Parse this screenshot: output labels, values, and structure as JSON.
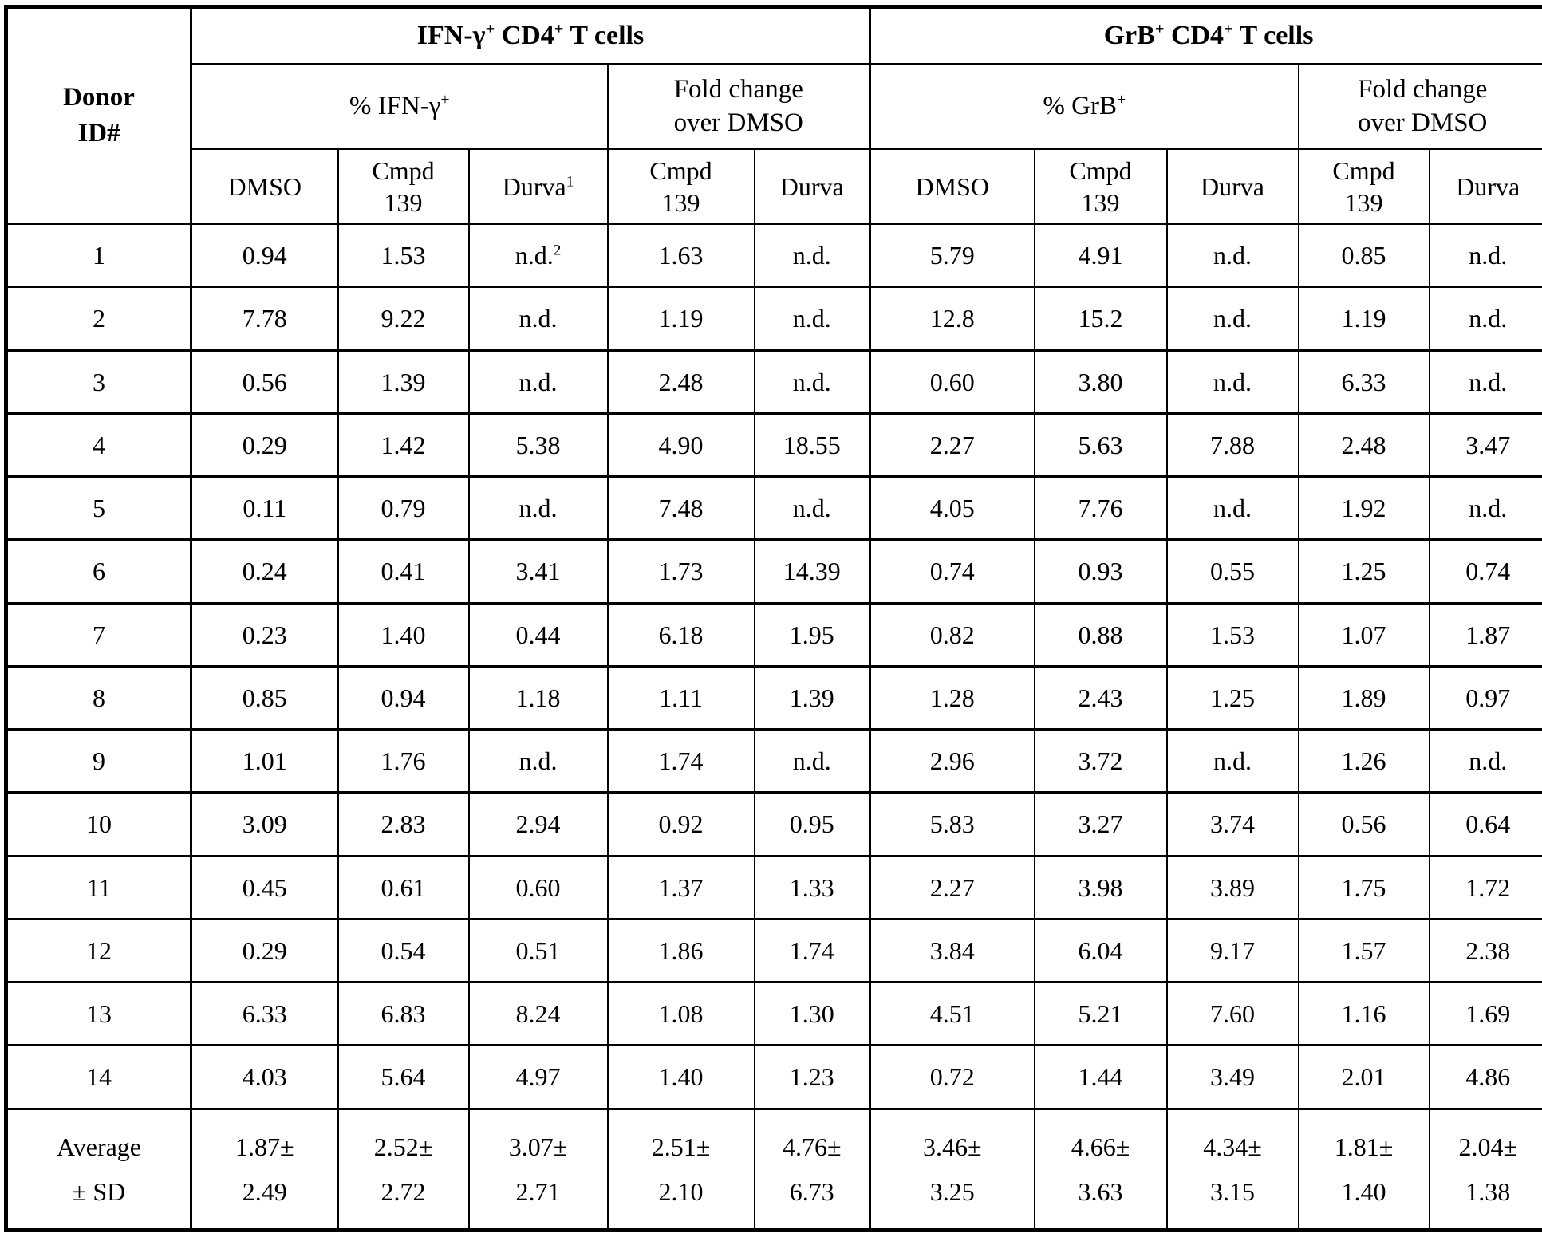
{
  "table": {
    "donor_header": "Donor\nID#",
    "col_groups": [
      {
        "label": "IFN-γ^+ CD4^+ T cells",
        "sub": [
          {
            "label": "% IFN-γ^+",
            "span": 3
          },
          {
            "label": "Fold change\nover DMSO",
            "span": 2
          }
        ]
      },
      {
        "label": "GrB^+ CD4^+ T cells",
        "sub": [
          {
            "label": "% GrB^+",
            "span": 3
          },
          {
            "label": "Fold change\nover DMSO",
            "span": 2
          }
        ]
      }
    ],
    "column_headers": [
      "DMSO",
      "Cmpd\n139",
      "Durva^1",
      "Cmpd\n139",
      "Durva",
      "DMSO",
      "Cmpd\n139",
      "Durva",
      "Cmpd\n139",
      "Durva"
    ],
    "rows": [
      {
        "donor": "1",
        "values": [
          "0.94",
          "1.53",
          "n.d.^2",
          "1.63",
          "n.d.",
          "5.79",
          "4.91",
          "n.d.",
          "0.85",
          "n.d."
        ]
      },
      {
        "donor": "2",
        "values": [
          "7.78",
          "9.22",
          "n.d.",
          "1.19",
          "n.d.",
          "12.8",
          "15.2",
          "n.d.",
          "1.19",
          "n.d."
        ]
      },
      {
        "donor": "3",
        "values": [
          "0.56",
          "1.39",
          "n.d.",
          "2.48",
          "n.d.",
          "0.60",
          "3.80",
          "n.d.",
          "6.33",
          "n.d."
        ]
      },
      {
        "donor": "4",
        "values": [
          "0.29",
          "1.42",
          "5.38",
          "4.90",
          "18.55",
          "2.27",
          "5.63",
          "7.88",
          "2.48",
          "3.47"
        ]
      },
      {
        "donor": "5",
        "values": [
          "0.11",
          "0.79",
          "n.d.",
          "7.48",
          "n.d.",
          "4.05",
          "7.76",
          "n.d.",
          "1.92",
          "n.d."
        ]
      },
      {
        "donor": "6",
        "values": [
          "0.24",
          "0.41",
          "3.41",
          "1.73",
          "14.39",
          "0.74",
          "0.93",
          "0.55",
          "1.25",
          "0.74"
        ]
      },
      {
        "donor": "7",
        "values": [
          "0.23",
          "1.40",
          "0.44",
          "6.18",
          "1.95",
          "0.82",
          "0.88",
          "1.53",
          "1.07",
          "1.87"
        ]
      },
      {
        "donor": "8",
        "values": [
          "0.85",
          "0.94",
          "1.18",
          "1.11",
          "1.39",
          "1.28",
          "2.43",
          "1.25",
          "1.89",
          "0.97"
        ]
      },
      {
        "donor": "9",
        "values": [
          "1.01",
          "1.76",
          "n.d.",
          "1.74",
          "n.d.",
          "2.96",
          "3.72",
          "n.d.",
          "1.26",
          "n.d."
        ]
      },
      {
        "donor": "10",
        "values": [
          "3.09",
          "2.83",
          "2.94",
          "0.92",
          "0.95",
          "5.83",
          "3.27",
          "3.74",
          "0.56",
          "0.64"
        ]
      },
      {
        "donor": "11",
        "values": [
          "0.45",
          "0.61",
          "0.60",
          "1.37",
          "1.33",
          "2.27",
          "3.98",
          "3.89",
          "1.75",
          "1.72"
        ]
      },
      {
        "donor": "12",
        "values": [
          "0.29",
          "0.54",
          "0.51",
          "1.86",
          "1.74",
          "3.84",
          "6.04",
          "9.17",
          "1.57",
          "2.38"
        ]
      },
      {
        "donor": "13",
        "values": [
          "6.33",
          "6.83",
          "8.24",
          "1.08",
          "1.30",
          "4.51",
          "5.21",
          "7.60",
          "1.16",
          "1.69"
        ]
      },
      {
        "donor": "14",
        "values": [
          "4.03",
          "5.64",
          "4.97",
          "1.40",
          "1.23",
          "0.72",
          "1.44",
          "3.49",
          "2.01",
          "4.86"
        ]
      }
    ],
    "summary_row": {
      "donor": "Average\n± SD",
      "values": [
        "1.87±\n2.49",
        "2.52±\n2.72",
        "3.07±\n2.71",
        "2.51±\n2.10",
        "4.76±\n6.73",
        "3.46±\n3.25",
        "4.66±\n3.63",
        "4.34±\n3.15",
        "1.81±\n1.40",
        "2.04±\n1.38"
      ]
    }
  }
}
